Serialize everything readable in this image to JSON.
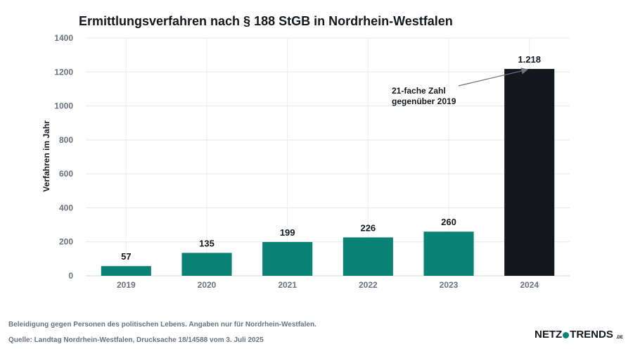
{
  "chart_data": {
    "type": "bar",
    "title": "Ermittlungsverfahren nach § 188 StGB in Nordrhein-Westfalen",
    "xlabel": "",
    "ylabel": "Verfahren im Jahr",
    "categories": [
      "2019",
      "2020",
      "2021",
      "2022",
      "2023",
      "2024"
    ],
    "values": [
      57,
      135,
      199,
      226,
      260,
      1218
    ],
    "data_labels": [
      "57",
      "135",
      "199",
      "226",
      "260",
      "1.218"
    ],
    "ylim": [
      0,
      1400
    ],
    "yticks": [
      0,
      200,
      400,
      600,
      800,
      1000,
      1200,
      1400
    ],
    "grid": true,
    "colors": {
      "default": "#0b8276",
      "highlight": "#14181c"
    },
    "highlight_category": "2024",
    "annotation": {
      "lines": [
        "21-fache Zahl",
        "gegenüber 2019"
      ],
      "target_category": "2024"
    }
  },
  "footer": {
    "description": "Beleidigung gegen Personen des politischen Lebens. Angaben nur für Nordrhein-Westfalen.",
    "source": "Quelle: Landtag Nordrhein-Westfalen, Drucksache 18/14588 vom 3. Juli 2025"
  },
  "logo": {
    "left": "NETZ",
    "right": "TRENDS",
    "suffix": ".DE"
  }
}
